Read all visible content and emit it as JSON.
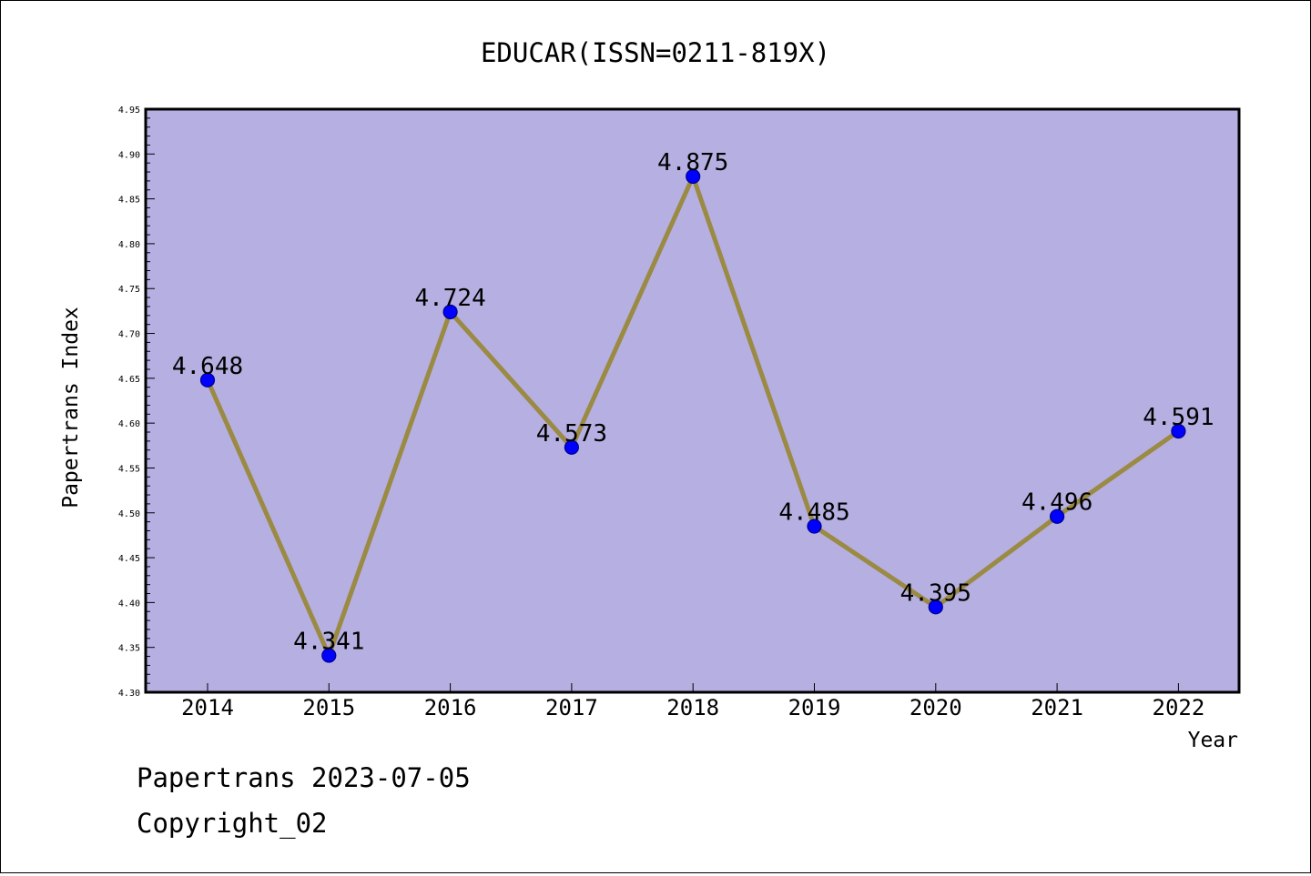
{
  "chart_data": {
    "type": "line",
    "title": "EDUCAR(ISSN=0211-819X)",
    "xlabel": "Year",
    "ylabel": "Papertrans Index",
    "categories": [
      "2014",
      "2015",
      "2016",
      "2017",
      "2018",
      "2019",
      "2020",
      "2021",
      "2022"
    ],
    "values": [
      4.648,
      4.341,
      4.724,
      4.573,
      4.875,
      4.485,
      4.395,
      4.496,
      4.591
    ],
    "value_labels": [
      "4.648",
      "4.341",
      "4.724",
      "4.573",
      "4.875",
      "4.485",
      "4.395",
      "4.496",
      "4.591"
    ],
    "ylim": [
      4.3,
      4.95
    ],
    "yticks": [
      "4.30",
      "4.35",
      "4.40",
      "4.45",
      "4.50",
      "4.55",
      "4.60",
      "4.65",
      "4.70",
      "4.75",
      "4.80",
      "4.85",
      "4.90",
      "4.95"
    ],
    "grid": false,
    "legend": "none",
    "colors": {
      "plot_background": "#b5afe2",
      "line": "#9a8a42",
      "marker": "#0000ff",
      "marker_edge": "#00008b"
    }
  },
  "footer": {
    "line1": "Papertrans 2023-07-05",
    "line2": "Copyright_02"
  }
}
